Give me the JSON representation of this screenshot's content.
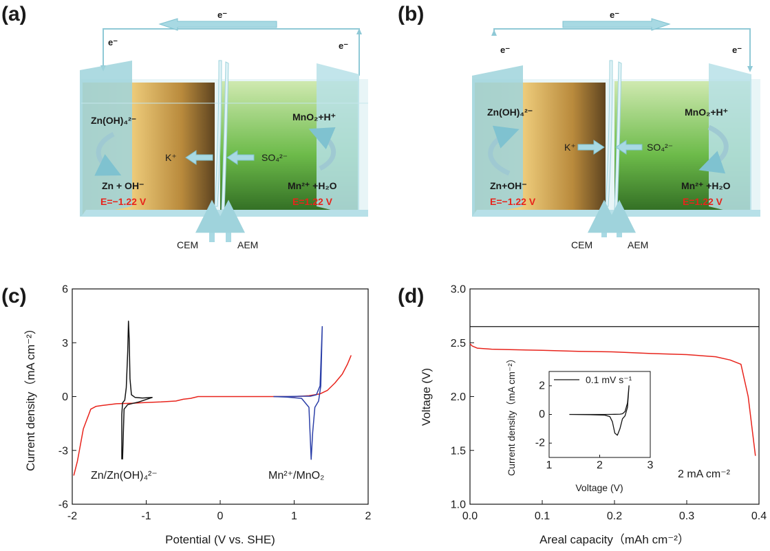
{
  "panels": {
    "a": {
      "label": "(a)",
      "electron_top": "e⁻",
      "electron_left": "e⁻",
      "electron_right": "e⁻",
      "left_top_species": "Zn(OH)₄²⁻",
      "left_bottom_species": "Zn + OH⁻",
      "left_potential": "E=−1.22 V",
      "right_top_species": "MnO₂+H⁺",
      "right_bottom_species": "Mn²⁺ +H₂O",
      "right_potential": "E=1.22 V",
      "cation": "K⁺",
      "anion": "SO₄²⁻",
      "cem": "CEM",
      "aem": "AEM"
    },
    "b": {
      "label": "(b)",
      "electron_top": "e⁻",
      "electron_left": "e⁻",
      "electron_right": "e⁻",
      "left_top_species": "Zn(OH)₄²⁻",
      "left_bottom_species": "Zn+OH⁻",
      "left_potential": "E=−1.22 V",
      "right_top_species": "MnO₂+H⁺",
      "right_bottom_species": "Mn²⁺ +H₂O",
      "right_potential": "E=1.22 V",
      "cation": "K⁺",
      "anion": "SO₄²⁻",
      "cem": "CEM",
      "aem": "AEM"
    }
  },
  "colors": {
    "zn_cell": "#c9a24a",
    "mn_cell": "#5aa83c",
    "frame": "#9fd3dc",
    "arrow": "#a8d9e3",
    "red_curve": "#e8231b",
    "blue_curve": "#2b3fa8",
    "black_curve": "#111111"
  },
  "chart_data": [
    {
      "panel": "(c)",
      "type": "line",
      "xlabel": "Potential (V vs. SHE)",
      "ylabel": "Current density（mA cm⁻²）",
      "xlim": [
        -2,
        2
      ],
      "ylim": [
        -6,
        6
      ],
      "xticks": [
        "-2",
        "-1",
        "0",
        "1",
        "2"
      ],
      "yticks": [
        "-6",
        "-3",
        "0",
        "3",
        "6"
      ],
      "annotations": [
        "Zn/Zn(OH)₄²⁻",
        "Mn²⁺/MnO₂"
      ],
      "series": [
        {
          "color": "#e8231b",
          "x": [
            -1.98,
            -1.93,
            -1.85,
            -1.75,
            -1.68,
            -1.6,
            -1.4,
            -1.2,
            -1.0,
            -0.8,
            -0.6,
            -0.5,
            -0.4,
            -0.3,
            0.0,
            0.5,
            1.0,
            1.2,
            1.35,
            1.45,
            1.55,
            1.65,
            1.72,
            1.77
          ],
          "y": [
            -4.4,
            -3.6,
            -1.8,
            -0.7,
            -0.55,
            -0.5,
            -0.4,
            -0.37,
            -0.33,
            -0.3,
            -0.25,
            -0.15,
            -0.1,
            0.0,
            0.0,
            0.0,
            0.0,
            0.05,
            0.15,
            0.35,
            0.75,
            1.25,
            1.8,
            2.3
          ]
        },
        {
          "color": "#111111",
          "x": [
            -1.33,
            -1.33,
            -1.32,
            -1.29,
            -1.27,
            -1.25,
            -1.24,
            -1.23,
            -1.22,
            -1.2,
            -1.15,
            -1.05,
            -0.92,
            -1.1,
            -1.25,
            -1.3,
            -1.32
          ],
          "y": [
            -3.5,
            -1.0,
            -0.35,
            -0.2,
            0.5,
            2.5,
            4.2,
            3.2,
            1.0,
            0.1,
            -0.05,
            -0.08,
            -0.05,
            -0.3,
            -0.45,
            -0.7,
            -3.5
          ]
        },
        {
          "color": "#2b3fa8",
          "x": [
            0.72,
            0.9,
            1.1,
            1.2,
            1.22,
            1.23,
            1.25,
            1.28,
            1.33,
            1.36,
            1.38,
            1.35,
            1.3,
            1.22,
            1.1,
            0.9,
            0.72
          ],
          "y": [
            0.0,
            -0.03,
            -0.1,
            -0.6,
            -2.5,
            -3.5,
            -2.0,
            -0.6,
            -0.25,
            0.6,
            3.9,
            0.6,
            0.1,
            0.02,
            0.02,
            0.0,
            0.0
          ]
        }
      ]
    },
    {
      "panel": "(d)",
      "type": "line",
      "xlabel": "Areal capacity（mAh cm⁻²）",
      "ylabel": "Voltage (V)",
      "xlim": [
        0.0,
        0.4
      ],
      "ylim": [
        1.0,
        3.0
      ],
      "xticks": [
        "0.0",
        "0.1",
        "0.2",
        "0.3",
        "0.4"
      ],
      "yticks": [
        "1.0",
        "1.5",
        "2.0",
        "2.5",
        "3.0"
      ],
      "annotation": "2 mA cm⁻²",
      "reference_line_y": 2.65,
      "series": [
        {
          "color": "#e8231b",
          "x": [
            0.0,
            0.003,
            0.01,
            0.03,
            0.06,
            0.1,
            0.15,
            0.2,
            0.25,
            0.3,
            0.34,
            0.36,
            0.375,
            0.385,
            0.395
          ],
          "y": [
            2.49,
            2.47,
            2.45,
            2.44,
            2.435,
            2.43,
            2.42,
            2.415,
            2.4,
            2.39,
            2.37,
            2.34,
            2.3,
            2.0,
            1.45
          ]
        }
      ],
      "inset": {
        "xlabel": "Voltage (V)",
        "ylabel": "Current density（mA cm⁻²）",
        "xlim": [
          1,
          3
        ],
        "ylim": [
          -3,
          3
        ],
        "xticks": [
          "1",
          "2",
          "3"
        ],
        "yticks": [
          "-2",
          "0",
          "2"
        ],
        "legend": "0.1 mV s⁻¹",
        "series": [
          {
            "color": "#111111",
            "x": [
              1.4,
              1.8,
              2.1,
              2.2,
              2.25,
              2.3,
              2.35,
              2.4,
              2.45,
              2.5,
              2.55,
              2.58,
              2.55,
              2.5,
              2.45,
              2.4,
              2.3,
              2.1,
              1.8,
              1.4
            ],
            "y": [
              0.0,
              -0.02,
              -0.05,
              -0.15,
              -0.5,
              -1.3,
              -1.45,
              -1.0,
              -0.3,
              -0.1,
              0.5,
              2.0,
              0.8,
              0.2,
              0.05,
              0.02,
              0.01,
              0.0,
              0.0,
              0.0
            ]
          }
        ]
      }
    }
  ]
}
